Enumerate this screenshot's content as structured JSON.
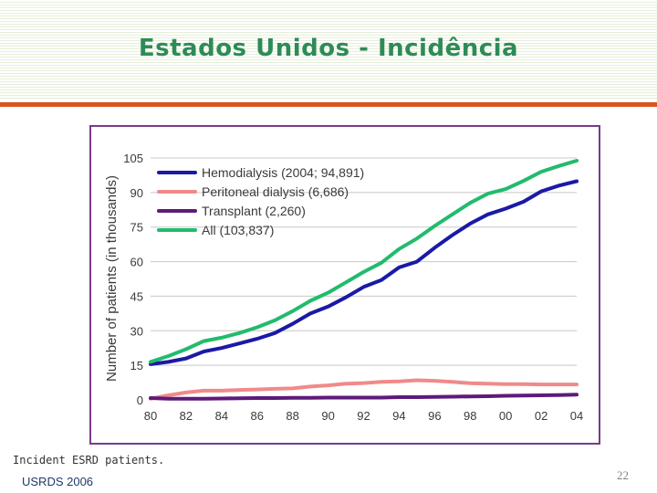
{
  "slide": {
    "title": "Estados Unidos - Incidência",
    "caption": "Incident ESRD patients.",
    "source": "USRDS 2006",
    "page_number": "22"
  },
  "colors": {
    "title": "#2e8b57",
    "rule": "#d9541e",
    "frame": "#7b3a8c"
  },
  "chart_data": {
    "type": "line",
    "ylabel": "Number of patients (in thousands)",
    "xlabel": "",
    "ylim": [
      0,
      105
    ],
    "yticks": [
      "0",
      "15",
      "30",
      "45",
      "60",
      "75",
      "90",
      "105"
    ],
    "ytick_values": [
      0,
      15,
      30,
      45,
      60,
      75,
      90,
      105
    ],
    "xtick_values": [
      1980,
      1982,
      1984,
      1986,
      1988,
      1990,
      1992,
      1994,
      1996,
      1998,
      2000,
      2002,
      2004
    ],
    "xtick_labels": [
      "80",
      "82",
      "84",
      "86",
      "88",
      "90",
      "92",
      "94",
      "96",
      "98",
      "00",
      "02",
      "04"
    ],
    "grid": true,
    "legend_position": "top-left",
    "x": [
      1980,
      1981,
      1982,
      1983,
      1984,
      1985,
      1986,
      1987,
      1988,
      1989,
      1990,
      1991,
      1992,
      1993,
      1994,
      1995,
      1996,
      1997,
      1998,
      1999,
      2000,
      2001,
      2002,
      2003,
      2004
    ],
    "series": [
      {
        "name": "Hemodialysis",
        "legend_label": "Hemodialysis (2004; 94,891)",
        "color": "#1a1aa6",
        "values": [
          15.5,
          16.5,
          18,
          21,
          22.5,
          24.5,
          26.5,
          29,
          33,
          37.5,
          40.5,
          44.5,
          49,
          52,
          57.5,
          60,
          66,
          71.5,
          76.5,
          80.5,
          83,
          86,
          90.5,
          93,
          94.9
        ]
      },
      {
        "name": "Peritoneal dialysis",
        "legend_label": "Peritoneal dialysis (6,686)",
        "color": "#f08a8a",
        "values": [
          0.5,
          2,
          3.2,
          4,
          4,
          4.3,
          4.5,
          4.8,
          5,
          5.8,
          6.3,
          7,
          7.3,
          7.8,
          8,
          8.5,
          8.3,
          7.8,
          7.2,
          7,
          6.8,
          6.8,
          6.7,
          6.7,
          6.7
        ]
      },
      {
        "name": "Transplant",
        "legend_label": "Transplant (2,260)",
        "color": "#5e1a7a",
        "values": [
          0.8,
          0.5,
          0.5,
          0.5,
          0.6,
          0.7,
          0.8,
          0.8,
          0.9,
          0.9,
          1,
          1,
          1,
          1,
          1.2,
          1.2,
          1.3,
          1.4,
          1.5,
          1.6,
          1.8,
          1.9,
          2,
          2.1,
          2.3
        ]
      },
      {
        "name": "All",
        "legend_label": "All (103,837)",
        "color": "#22bb6e",
        "values": [
          16.5,
          19,
          22,
          25.5,
          27,
          29,
          31.5,
          34.5,
          38.5,
          43,
          46.5,
          51,
          55.5,
          59.5,
          65.5,
          70,
          75.5,
          80.5,
          85.5,
          89.5,
          91.5,
          95,
          99,
          101.5,
          103.8
        ]
      }
    ]
  }
}
